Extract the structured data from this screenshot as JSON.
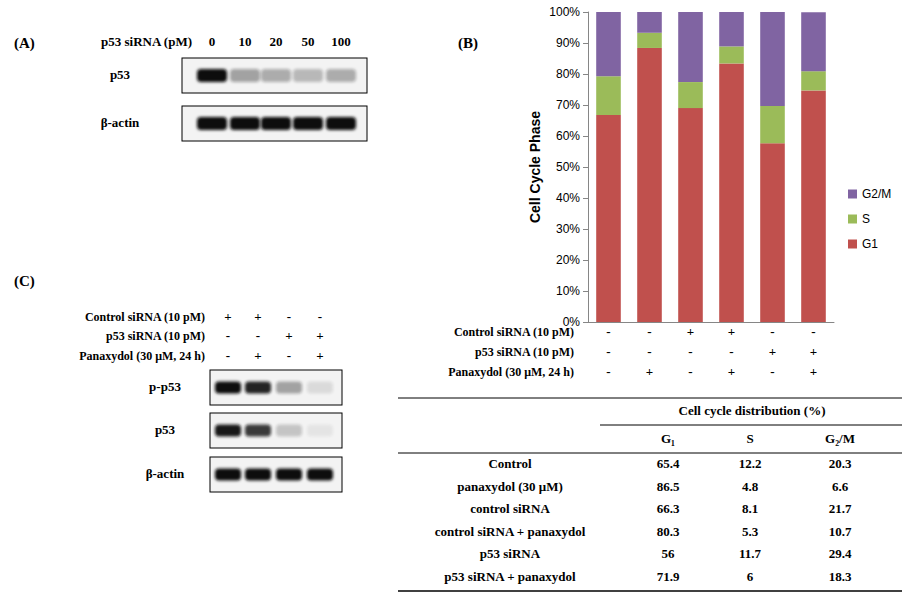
{
  "panel_labels": {
    "a": "(A)",
    "b": "(B)",
    "c": "(C)"
  },
  "blot_a": {
    "header": "p53 siRNA (pM)",
    "lanes": [
      "0",
      "10",
      "20",
      "50",
      "100"
    ],
    "rows": [
      {
        "label": "p53",
        "intensity": [
          1,
          0.35,
          0.3,
          0.25,
          0.3
        ]
      },
      {
        "label": "β-actin",
        "intensity": [
          1,
          1,
          1,
          1,
          1
        ]
      }
    ]
  },
  "blot_c": {
    "treatments": [
      {
        "label": "Control siRNA (10 pM)",
        "signs": [
          "+",
          "+",
          "-",
          "-"
        ]
      },
      {
        "label": "p53 siRNA (10 pM)",
        "signs": [
          "-",
          "-",
          "+",
          "+"
        ]
      },
      {
        "label": "Panaxydol (30 μM, 24 h)",
        "signs": [
          "-",
          "+",
          "-",
          "+"
        ]
      }
    ],
    "rows": [
      {
        "label": "p-p53",
        "intensity": [
          1,
          0.9,
          0.35,
          0.1
        ]
      },
      {
        "label": "p53",
        "intensity": [
          0.95,
          0.8,
          0.2,
          0.06
        ]
      },
      {
        "label": "β-actin",
        "intensity": [
          1,
          1,
          1,
          1
        ]
      }
    ]
  },
  "chart_treatments": [
    {
      "label": "Control siRNA (10 pM)",
      "signs": [
        "-",
        "-",
        "+",
        "+",
        "-",
        "-"
      ]
    },
    {
      "label": "p53 siRNA (10 pM)",
      "signs": [
        "-",
        "-",
        "-",
        "-",
        "+",
        "+"
      ]
    },
    {
      "label": "Panaxydol (30 μM, 24 h)",
      "signs": [
        "-",
        "+",
        "-",
        "+",
        "-",
        "+"
      ]
    }
  ],
  "chart_data": {
    "type": "bar",
    "stacked": true,
    "categories": [
      null,
      null,
      null,
      null,
      null,
      null
    ],
    "ylabel": "Cell Cycle Phase",
    "ylim": [
      0,
      100
    ],
    "yticks": [
      {
        "value": 0,
        "label": "0%"
      },
      {
        "value": 10,
        "label": "10%"
      },
      {
        "value": 20,
        "label": "20%"
      },
      {
        "value": 30,
        "label": "30%"
      },
      {
        "value": 40,
        "label": "40%"
      },
      {
        "value": 50,
        "label": "50%"
      },
      {
        "value": 60,
        "label": "60%"
      },
      {
        "value": 70,
        "label": "70%"
      },
      {
        "value": 80,
        "label": "80%"
      },
      {
        "value": 90,
        "label": "90%"
      },
      {
        "value": 100,
        "label": "100%"
      }
    ],
    "grid": false,
    "legend": "right",
    "tick_labels": "y",
    "series": [
      {
        "name": "G1",
        "color": "#c0504d",
        "values": [
          66.8,
          88.4,
          69.0,
          83.4,
          57.7,
          74.7
        ]
      },
      {
        "name": "S",
        "color": "#9bbb59",
        "values": [
          12.5,
          4.9,
          8.4,
          5.5,
          12.0,
          6.2
        ]
      },
      {
        "name": "G2/M",
        "color": "#8064a2",
        "values": [
          20.7,
          6.7,
          22.6,
          11.1,
          30.3,
          19.0
        ]
      }
    ]
  },
  "table": {
    "title": "Cell cycle distribution (%)",
    "columns": [
      "G₁",
      "S",
      "G₂/M"
    ],
    "rows": [
      {
        "label": "Control",
        "values": [
          65.4,
          12.2,
          20.3
        ]
      },
      {
        "label": "panaxydol (30 μM)",
        "values": [
          86.5,
          4.8,
          6.6
        ]
      },
      {
        "label": "control siRNA",
        "values": [
          66.3,
          8.1,
          21.7
        ]
      },
      {
        "label": "control siRNA + panaxydol",
        "values": [
          80.3,
          5.3,
          10.7
        ]
      },
      {
        "label": "p53 siRNA",
        "values": [
          56,
          11.7,
          29.4
        ]
      },
      {
        "label": "p53 siRNA + panaxydol",
        "values": [
          71.9,
          6,
          18.3
        ]
      }
    ]
  }
}
